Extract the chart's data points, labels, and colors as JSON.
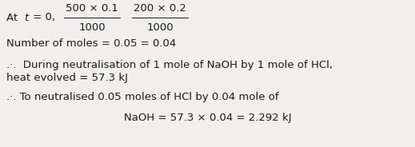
{
  "bg_color": "#f0efeb",
  "text_color": "#1a1a1a",
  "frac1_num": "500 × 0.1",
  "frac1_den": "1000",
  "frac2_num": "200 × 0.2",
  "frac2_den": "1000",
  "line2": "Number of moles = 0.05 = 0.04",
  "line3a": ".·.  During neutralisation of 1 mole of NaOH by 1 mole of HCl,",
  "line3b": "heat evolved = 57.3 kJ",
  "line4a": ".·. To neutralised 0.05 moles of HCl by 0.04 mole of",
  "line4b": "NaOH = 57.3 × 0.04 = 2.292 kJ",
  "fontsize": 9.5
}
